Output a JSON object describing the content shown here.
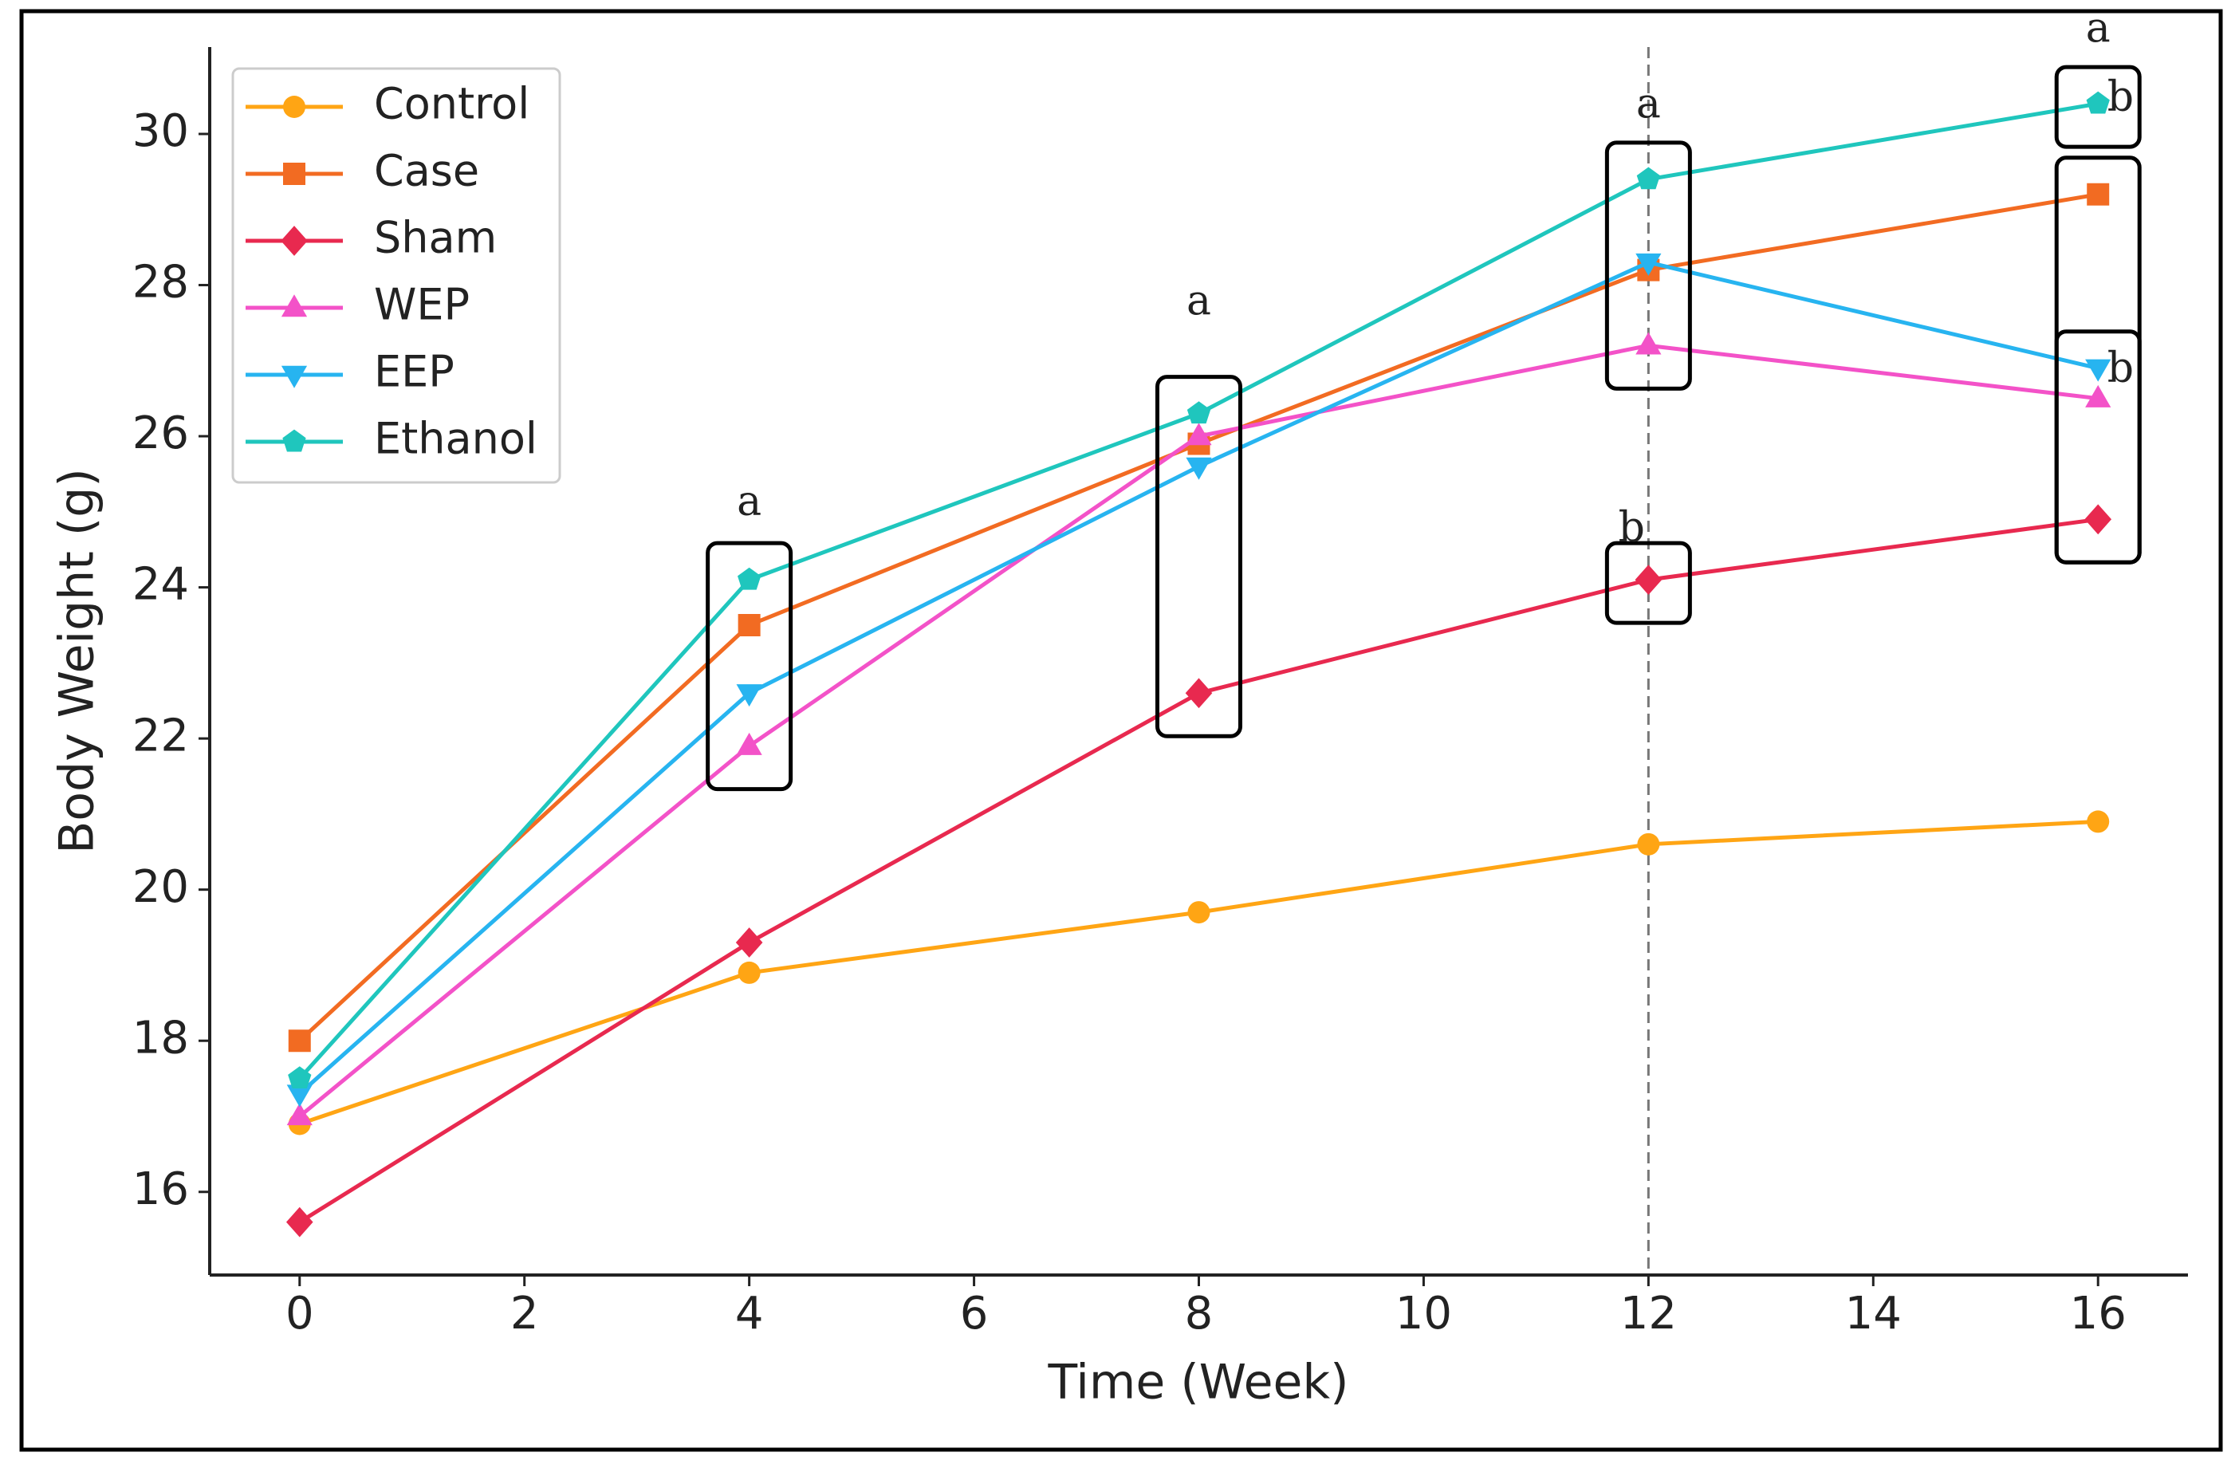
{
  "chart_data": {
    "type": "line",
    "x_label": "Time (Week)",
    "y_label": "Body Weight (g)",
    "x": [
      0,
      4,
      8,
      12,
      16
    ],
    "series": [
      {
        "name": "Control",
        "color": "#ffa514",
        "marker": "circle",
        "values": [
          16.9,
          18.9,
          19.7,
          20.6,
          20.9
        ]
      },
      {
        "name": "Case",
        "color": "#f26b22",
        "marker": "square",
        "values": [
          18.0,
          23.5,
          25.9,
          28.2,
          29.2
        ]
      },
      {
        "name": "Sham",
        "color": "#e8294f",
        "marker": "diamond",
        "values": [
          15.6,
          19.3,
          22.6,
          24.1,
          24.9
        ]
      },
      {
        "name": "WEP",
        "color": "#f352c8",
        "marker": "triangle-up",
        "values": [
          17.0,
          21.9,
          26.0,
          27.2,
          26.5
        ]
      },
      {
        "name": "EEP",
        "color": "#27b4f0",
        "marker": "triangle-down",
        "values": [
          17.3,
          22.6,
          25.6,
          28.3,
          26.9
        ]
      },
      {
        "name": "Ethanol",
        "color": "#1fc6bd",
        "marker": "pentagon",
        "values": [
          17.5,
          24.1,
          26.3,
          29.4,
          30.4
        ]
      }
    ],
    "xlim": [
      -0.8,
      16.8
    ],
    "xticks": [
      0,
      2,
      4,
      6,
      8,
      10,
      12,
      14,
      16
    ],
    "ylim": [
      14.9,
      31.15
    ],
    "yticks": [
      16,
      18,
      20,
      22,
      24,
      26,
      28,
      30
    ],
    "grid": false,
    "legend": "upper left",
    "vline": 12,
    "annotations": [
      {
        "text": "a",
        "x": 4,
        "y": 25.1
      },
      {
        "text": "a",
        "x": 8,
        "y": 27.75
      },
      {
        "text": "a",
        "x": 12,
        "y": 30.36
      },
      {
        "text": "b",
        "x": 11.85,
        "y": 24.75
      },
      {
        "text": "a",
        "x": 16,
        "y": 31.36
      },
      {
        "text": "b",
        "x": 16.2,
        "y": 30.45
      },
      {
        "text": "b",
        "x": 16.2,
        "y": 26.86
      }
    ]
  }
}
